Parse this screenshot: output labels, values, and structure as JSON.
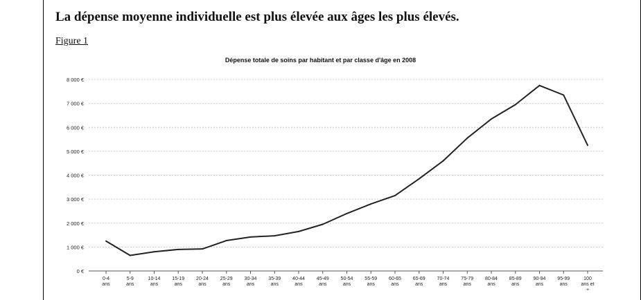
{
  "page": {
    "heading": "La dépense moyenne individuelle est plus élevée aux âges les plus élevés.",
    "figure_label": "Figure 1"
  },
  "chart_data": {
    "type": "line",
    "title": "Dépense totale de soins par habitant et par classe d'âge en 2008",
    "xlabel": "",
    "ylabel": "",
    "categories": [
      [
        "0-4",
        "ans"
      ],
      [
        "5-9",
        "ans"
      ],
      [
        "10-14",
        "ans"
      ],
      [
        "15-19",
        "ans"
      ],
      [
        "20-24",
        "ans"
      ],
      [
        "25-29",
        "ans"
      ],
      [
        "30-34",
        "ans"
      ],
      [
        "35-39",
        "ans"
      ],
      [
        "40-44",
        "ans"
      ],
      [
        "45-49",
        "ans"
      ],
      [
        "50-54",
        "ans"
      ],
      [
        "55-59",
        "ans"
      ],
      [
        "60-65",
        "ans"
      ],
      [
        "65-69",
        "ans"
      ],
      [
        "70-74",
        "ans"
      ],
      [
        "75-79",
        "ans"
      ],
      [
        "80-84",
        "ans"
      ],
      [
        "85-89",
        "ans"
      ],
      [
        "90-94",
        "ans"
      ],
      [
        "95-99",
        "ans"
      ],
      [
        "100",
        "ans et",
        "+"
      ]
    ],
    "series": [
      {
        "values": [
          1250,
          650,
          800,
          900,
          920,
          1270,
          1420,
          1470,
          1650,
          1950,
          2400,
          2800,
          3150,
          3850,
          4600,
          5550,
          6350,
          6950,
          7750,
          7350,
          5250
        ]
      }
    ],
    "yticks": [
      "0 €",
      "1 000 €",
      "2 000 €",
      "3 000 €",
      "4 000 €",
      "5 000 €",
      "6 000 €",
      "7 000 €",
      "8 000 €"
    ],
    "ylim": [
      0,
      8000
    ],
    "grid": true,
    "legend": "none",
    "colors": {
      "line": "#222222",
      "grid": "#c8c8c8",
      "axis": "#555555"
    }
  }
}
